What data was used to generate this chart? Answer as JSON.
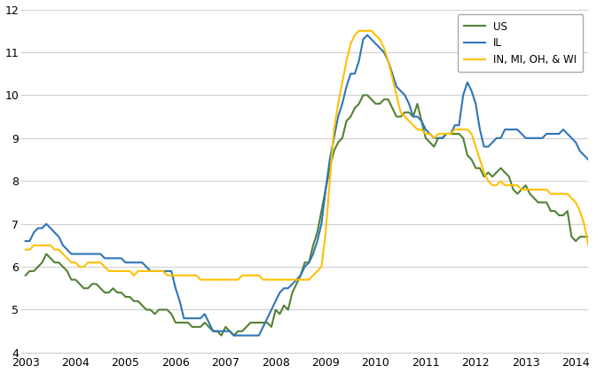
{
  "us": [
    5.8,
    5.9,
    5.9,
    6.0,
    6.1,
    6.3,
    6.2,
    6.1,
    6.1,
    6.0,
    5.9,
    5.7,
    5.7,
    5.6,
    5.5,
    5.5,
    5.6,
    5.6,
    5.5,
    5.4,
    5.4,
    5.5,
    5.4,
    5.4,
    5.3,
    5.3,
    5.2,
    5.2,
    5.1,
    5.0,
    5.0,
    4.9,
    5.0,
    5.0,
    5.0,
    4.9,
    4.7,
    4.7,
    4.7,
    4.7,
    4.6,
    4.6,
    4.6,
    4.7,
    4.6,
    4.5,
    4.5,
    4.4,
    4.6,
    4.5,
    4.4,
    4.5,
    4.5,
    4.6,
    4.7,
    4.7,
    4.7,
    4.7,
    4.7,
    4.6,
    5.0,
    4.9,
    5.1,
    5.0,
    5.4,
    5.6,
    5.8,
    6.1,
    6.1,
    6.5,
    6.8,
    7.3,
    7.8,
    8.3,
    8.7,
    8.9,
    9.0,
    9.4,
    9.5,
    9.7,
    9.8,
    10.0,
    10.0,
    9.9,
    9.8,
    9.8,
    9.9,
    9.9,
    9.7,
    9.5,
    9.5,
    9.6,
    9.6,
    9.5,
    9.8,
    9.4,
    9.0,
    8.9,
    8.8,
    9.0,
    9.0,
    9.1,
    9.1,
    9.1,
    9.1,
    9.0,
    8.6,
    8.5,
    8.3,
    8.3,
    8.1,
    8.2,
    8.1,
    8.2,
    8.3,
    8.2,
    8.1,
    7.8,
    7.7,
    7.8,
    7.9,
    7.7,
    7.6,
    7.5,
    7.5,
    7.5,
    7.3,
    7.3,
    7.2,
    7.2,
    7.3,
    6.7,
    6.6,
    6.7,
    6.7,
    6.7
  ],
  "il": [
    6.6,
    6.6,
    6.8,
    6.9,
    6.9,
    7.0,
    6.9,
    6.8,
    6.7,
    6.5,
    6.4,
    6.3,
    6.3,
    6.3,
    6.3,
    6.3,
    6.3,
    6.3,
    6.3,
    6.2,
    6.2,
    6.2,
    6.2,
    6.2,
    6.1,
    6.1,
    6.1,
    6.1,
    6.1,
    6.0,
    5.9,
    5.9,
    5.9,
    5.9,
    5.9,
    5.9,
    5.5,
    5.2,
    4.8,
    4.8,
    4.8,
    4.8,
    4.8,
    4.9,
    4.7,
    4.5,
    4.5,
    4.5,
    4.5,
    4.5,
    4.4,
    4.4,
    4.4,
    4.4,
    4.4,
    4.4,
    4.4,
    4.6,
    4.8,
    5.0,
    5.2,
    5.4,
    5.5,
    5.5,
    5.6,
    5.7,
    5.8,
    6.0,
    6.1,
    6.3,
    6.6,
    7.0,
    7.8,
    8.5,
    9.0,
    9.5,
    9.8,
    10.2,
    10.5,
    10.5,
    10.8,
    11.3,
    11.4,
    11.3,
    11.2,
    11.1,
    11.0,
    10.8,
    10.5,
    10.2,
    10.1,
    10.0,
    9.8,
    9.5,
    9.5,
    9.4,
    9.2,
    9.1,
    9.0,
    9.0,
    9.0,
    9.1,
    9.1,
    9.3,
    9.3,
    10.0,
    10.3,
    10.1,
    9.8,
    9.2,
    8.8,
    8.8,
    8.9,
    9.0,
    9.0,
    9.2,
    9.2,
    9.2,
    9.2,
    9.1,
    9.0,
    9.0,
    9.0,
    9.0,
    9.0,
    9.1,
    9.1,
    9.1,
    9.1,
    9.2,
    9.1,
    9.0,
    8.9,
    8.7,
    8.6,
    8.5
  ],
  "gl": [
    6.4,
    6.4,
    6.5,
    6.5,
    6.5,
    6.5,
    6.5,
    6.4,
    6.4,
    6.3,
    6.2,
    6.1,
    6.1,
    6.0,
    6.0,
    6.1,
    6.1,
    6.1,
    6.1,
    6.0,
    5.9,
    5.9,
    5.9,
    5.9,
    5.9,
    5.9,
    5.8,
    5.9,
    5.9,
    5.9,
    5.9,
    5.9,
    5.9,
    5.9,
    5.8,
    5.8,
    5.8,
    5.8,
    5.8,
    5.8,
    5.8,
    5.8,
    5.7,
    5.7,
    5.7,
    5.7,
    5.7,
    5.7,
    5.7,
    5.7,
    5.7,
    5.7,
    5.8,
    5.8,
    5.8,
    5.8,
    5.8,
    5.7,
    5.7,
    5.7,
    5.7,
    5.7,
    5.7,
    5.7,
    5.7,
    5.7,
    5.7,
    5.7,
    5.7,
    5.8,
    5.9,
    6.0,
    6.8,
    8.0,
    9.2,
    9.8,
    10.3,
    10.8,
    11.2,
    11.4,
    11.5,
    11.5,
    11.5,
    11.5,
    11.4,
    11.3,
    11.1,
    10.8,
    10.4,
    10.0,
    9.6,
    9.5,
    9.4,
    9.3,
    9.2,
    9.2,
    9.1,
    9.1,
    9.0,
    9.1,
    9.1,
    9.1,
    9.1,
    9.2,
    9.2,
    9.2,
    9.2,
    9.1,
    8.8,
    8.5,
    8.2,
    8.0,
    7.9,
    7.9,
    8.0,
    7.9,
    7.9,
    7.9,
    7.9,
    7.8,
    7.8,
    7.8,
    7.8,
    7.8,
    7.8,
    7.8,
    7.7,
    7.7,
    7.7,
    7.7,
    7.7,
    7.6,
    7.5,
    7.3,
    7.0,
    6.5
  ],
  "us_color": "#538135",
  "il_color": "#2E75B6",
  "gl_color": "#FFC000",
  "ylim": [
    4,
    12
  ],
  "yticks": [
    4,
    5,
    6,
    7,
    8,
    9,
    10,
    11,
    12
  ],
  "start_year": 2003,
  "end_year": 2014,
  "xtick_years": [
    2003,
    2004,
    2005,
    2006,
    2007,
    2008,
    2009,
    2010,
    2011,
    2012,
    2013,
    2014
  ],
  "legend_labels": [
    "US",
    "IL",
    "IN, MI, OH, & WI"
  ],
  "linewidth": 1.5,
  "bg_color": "#FFFFFF",
  "grid_color": "#D0D0D0",
  "figwidth": 6.73,
  "figheight": 4.22,
  "dpi": 100
}
